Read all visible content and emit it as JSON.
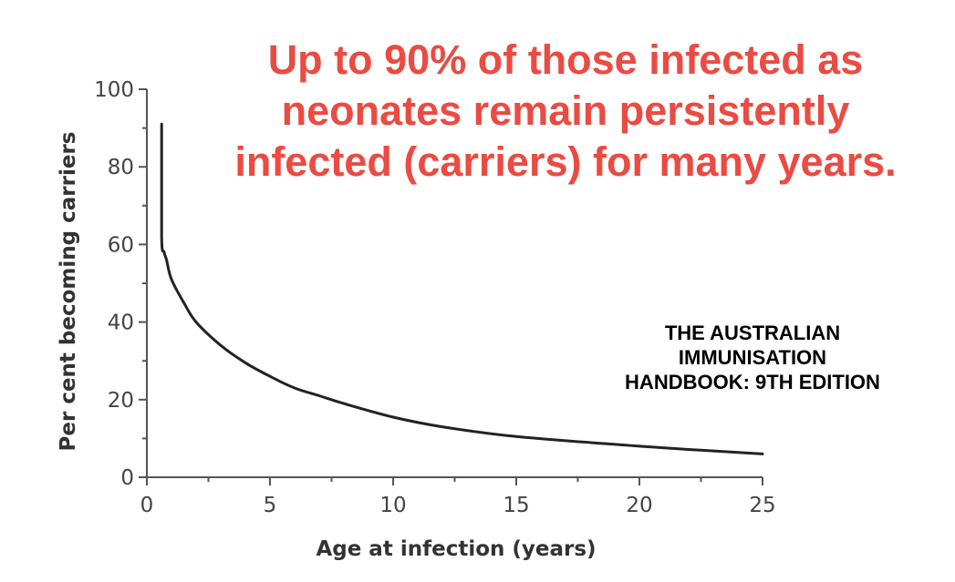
{
  "headline": {
    "lines": [
      "Up to 90% of those infected as",
      "neonates remain persistently",
      "infected (carriers) for many years."
    ],
    "color": "#ea4b42"
  },
  "source": {
    "lines": [
      "THE AUSTRALIAN",
      "IMMUNISATION",
      "HANDBOOK: 9TH EDITION"
    ]
  },
  "chart_data": {
    "type": "line",
    "title": "",
    "xlabel": "Age at infection (years)",
    "ylabel": "Per cent becoming carriers",
    "xlim": [
      0,
      25
    ],
    "ylim": [
      0,
      100
    ],
    "x_ticks": [
      0,
      5,
      10,
      15,
      20,
      25
    ],
    "y_ticks": [
      0,
      20,
      40,
      60,
      80,
      100
    ],
    "grid": false,
    "legend": "none",
    "series": [
      {
        "x": [
          0.6,
          0.6,
          0.7,
          0.8,
          1.0,
          1.5,
          2.0,
          3.0,
          4.0,
          5.0,
          6.0,
          7.0,
          8.0,
          10.0,
          12.0,
          15.0,
          20.0,
          25.0
        ],
        "y": [
          91,
          62,
          58,
          56,
          51,
          45,
          40,
          34,
          29.5,
          26,
          23,
          21,
          19,
          15.5,
          13,
          10.5,
          8,
          6
        ],
        "color": "#222222"
      }
    ]
  }
}
